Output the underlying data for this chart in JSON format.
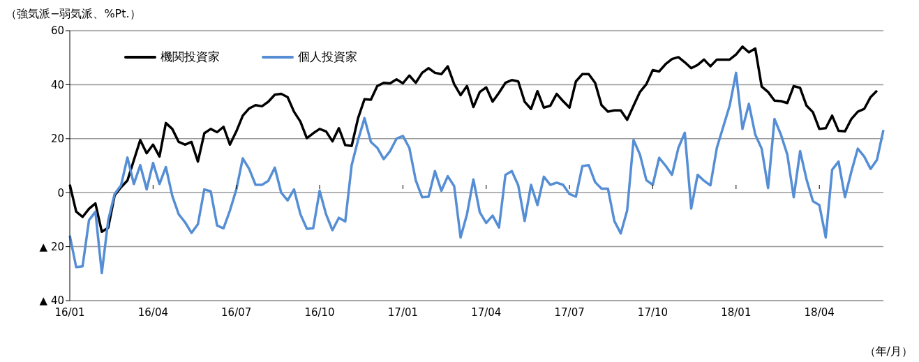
{
  "chart_data": {
    "type": "line",
    "ylabel": "（強気派−弱気派、%Pt.）",
    "xlabel": "（年/月）",
    "categories": [
      "16/01",
      null,
      null,
      null,
      null,
      null,
      null,
      null,
      null,
      null,
      null,
      null,
      null,
      "16/04",
      null,
      null,
      null,
      null,
      null,
      null,
      null,
      null,
      null,
      null,
      null,
      null,
      "16/07",
      null,
      null,
      null,
      null,
      null,
      null,
      null,
      null,
      null,
      null,
      null,
      null,
      "16/10",
      null,
      null,
      null,
      null,
      null,
      null,
      null,
      null,
      null,
      null,
      null,
      null,
      "17/01",
      null,
      null,
      null,
      null,
      null,
      null,
      null,
      null,
      null,
      null,
      null,
      null,
      "17/04",
      null,
      null,
      null,
      null,
      null,
      null,
      null,
      null,
      null,
      null,
      null,
      null,
      "17/07",
      null,
      null,
      null,
      null,
      null,
      null,
      null,
      null,
      null,
      null,
      null,
      null,
      "17/10",
      null,
      null,
      null,
      null,
      null,
      null,
      null,
      null,
      null,
      null,
      null,
      null,
      "18/01",
      null,
      null,
      null,
      null,
      null,
      null,
      null,
      null,
      null,
      null,
      null,
      null,
      "18/04",
      null,
      null,
      null,
      null,
      null,
      null,
      null,
      null,
      null,
      null
    ],
    "series": [
      {
        "name": "機関投資家",
        "color": "#000000",
        "values": [
          3,
          -7,
          -9,
          -6,
          -4,
          -14.5,
          -13,
          -1,
          2,
          4.5,
          12,
          19.5,
          14.6,
          17.8,
          13.4,
          25.8,
          23.6,
          18.8,
          17.8,
          18.8,
          11.5,
          22,
          23.6,
          22.4,
          24.4,
          17.8,
          22.7,
          28.5,
          31.2,
          32.4,
          32,
          33.7,
          36.3,
          36.6,
          35.4,
          30,
          26.3,
          20.2,
          22,
          23.6,
          22.7,
          19,
          23.9,
          17.6,
          17.3,
          27.6,
          34.6,
          34.4,
          39.5,
          40.7,
          40.5,
          42,
          40.5,
          43.4,
          40.7,
          44.4,
          46.1,
          44.4,
          43.9,
          46.8,
          40.2,
          36.1,
          39.5,
          31.7,
          37.3,
          39,
          33.7,
          37,
          40.7,
          41.7,
          41.2,
          33.7,
          31,
          37.6,
          31.5,
          32.2,
          36.6,
          33.9,
          31.5,
          41.2,
          43.9,
          43.9,
          40.7,
          32.4,
          30,
          30.5,
          30.5,
          27,
          32.2,
          37.3,
          40.2,
          45.4,
          44.9,
          47.6,
          49.5,
          50.2,
          48.3,
          46.1,
          47.3,
          49.3,
          46.8,
          49.3,
          49.3,
          49.3,
          51.2,
          54.1,
          52,
          53.4,
          39.3,
          37.3,
          34.1,
          33.9,
          33.2,
          39.5,
          38.8,
          32.2,
          29.8,
          23.6,
          23.9,
          28.5,
          22.9,
          22.7,
          27.3,
          30,
          31,
          35.4,
          37.8,
          null
        ]
      },
      {
        "name": "個人投資家",
        "color": "#558ed5",
        "values": [
          -15.9,
          -27.6,
          -27.3,
          -10.2,
          -7.1,
          -29.8,
          -10.2,
          -0.5,
          2.7,
          13,
          3.2,
          10.2,
          1.2,
          11,
          3.2,
          9.5,
          -1.2,
          -8,
          -11,
          -14.9,
          -11.7,
          1.2,
          0.5,
          -12.2,
          -13.2,
          -6.6,
          1.2,
          12.7,
          8.8,
          2.9,
          2.9,
          4.4,
          9.3,
          0,
          -2.9,
          1.2,
          -8,
          -13.4,
          -13.2,
          0.7,
          -8,
          -13.9,
          -9.3,
          -10.7,
          10.2,
          19.5,
          27.6,
          18.8,
          16.6,
          12.4,
          15.4,
          20,
          21,
          16.6,
          4.6,
          -1.7,
          -1.5,
          8,
          0.7,
          6.1,
          2.4,
          -16.6,
          -8,
          4.9,
          -7.3,
          -11.2,
          -8.5,
          -12.9,
          6.6,
          8,
          2.7,
          -10.5,
          2.9,
          -4.6,
          5.9,
          2.9,
          3.7,
          2.9,
          -0.5,
          -1.5,
          9.8,
          10.2,
          3.9,
          1.5,
          1.5,
          -10.5,
          -15.1,
          -6.6,
          19.5,
          14.1,
          4.6,
          2.9,
          12.9,
          10,
          6.6,
          16.6,
          22.2,
          -5.9,
          6.6,
          4.4,
          2.7,
          16.6,
          24.4,
          32.2,
          44.4,
          23.6,
          32.9,
          21.5,
          16.3,
          1.7,
          27.3,
          21.5,
          14.1,
          -1.7,
          15.4,
          4.9,
          -3.2,
          -4.6,
          -16.6,
          8.5,
          11.5,
          -1.7,
          7.8,
          16.3,
          13.4,
          8.8,
          12.2,
          23.2
        ]
      }
    ],
    "ylim": [
      -40,
      60
    ],
    "yticks": [
      {
        "value": -40,
        "label": "▲ 40"
      },
      {
        "value": -20,
        "label": "▲ 20"
      },
      0,
      20,
      40,
      60
    ],
    "grid": "y",
    "legend": "top left",
    "marker": "none",
    "line_style": "solid"
  }
}
